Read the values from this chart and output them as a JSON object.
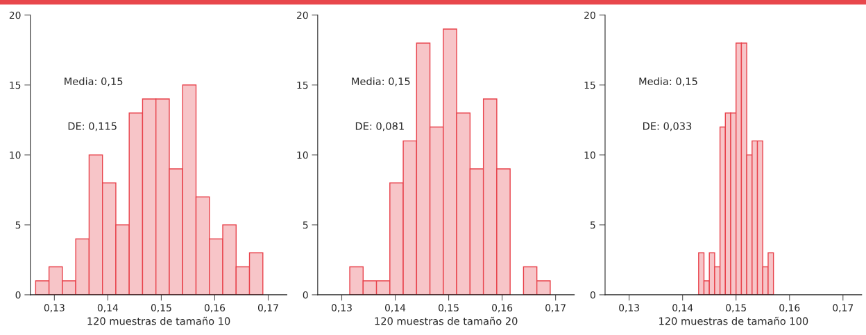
{
  "chart_data": [
    {
      "type": "histogram",
      "xlabel": "120 muestras de tamaño 10",
      "annotations": [
        "Media: 0,15",
        "DE: 0,115"
      ],
      "color": "#f7c5c8",
      "bins": [
        0.1265,
        0.129,
        0.1315,
        0.134,
        0.1365,
        0.139,
        0.1415,
        0.144,
        0.1465,
        0.149,
        0.1515,
        0.154,
        0.1565,
        0.159,
        0.1615,
        0.164,
        0.1665,
        0.169
      ],
      "values": [
        1,
        2,
        1,
        4,
        10,
        8,
        5,
        13,
        14,
        14,
        9,
        15,
        7,
        4,
        5,
        2,
        3
      ],
      "xlim": [
        0.1255,
        0.1735
      ],
      "xticks": [
        {
          "value": 0.13,
          "label": "0,13"
        },
        {
          "value": 0.14,
          "label": "0,14"
        },
        {
          "value": 0.15,
          "label": "0,15"
        },
        {
          "value": 0.16,
          "label": "0,16"
        },
        {
          "value": 0.17,
          "label": "0,17"
        }
      ],
      "ylim": [
        0,
        20
      ],
      "yticks": [
        0,
        5,
        10,
        15,
        20
      ],
      "grid": false
    },
    {
      "type": "histogram",
      "xlabel": "120 muestras de tamaño 20",
      "annotations": [
        "Media: 0,15",
        "DE: 0,081"
      ],
      "color": "#f7c5c8",
      "bins": [
        0.1315,
        0.134,
        0.1365,
        0.139,
        0.1415,
        0.144,
        0.1465,
        0.149,
        0.1515,
        0.154,
        0.1565,
        0.159,
        0.1615,
        0.164,
        0.1665,
        0.169
      ],
      "values": [
        2,
        1,
        1,
        8,
        11,
        18,
        12,
        19,
        13,
        9,
        14,
        9,
        0,
        2,
        1
      ],
      "xlim": [
        0.1255,
        0.1735
      ],
      "xticks": [
        {
          "value": 0.13,
          "label": "0,13"
        },
        {
          "value": 0.14,
          "label": "0,14"
        },
        {
          "value": 0.15,
          "label": "0,15"
        },
        {
          "value": 0.16,
          "label": "0,16"
        },
        {
          "value": 0.17,
          "label": "0,17"
        }
      ],
      "ylim": [
        0,
        20
      ],
      "yticks": [
        0,
        5,
        10,
        15,
        20
      ],
      "grid": false
    },
    {
      "type": "histogram",
      "xlabel": "120 muestras de tamaño 100",
      "annotations": [
        "Media: 0,15",
        "DE: 0,033"
      ],
      "color": "#f7c5c8",
      "bins": [
        0.143,
        0.144,
        0.145,
        0.146,
        0.147,
        0.148,
        0.149,
        0.15,
        0.151,
        0.152,
        0.153,
        0.154,
        0.155,
        0.156,
        0.157
      ],
      "values": [
        3,
        1,
        3,
        2,
        12,
        13,
        13,
        18,
        18,
        10,
        11,
        11,
        2,
        3
      ],
      "xlim": [
        0.1255,
        0.1735
      ],
      "xticks": [
        {
          "value": 0.13,
          "label": "0,13"
        },
        {
          "value": 0.14,
          "label": "0,14"
        },
        {
          "value": 0.15,
          "label": "0,15"
        },
        {
          "value": 0.16,
          "label": "0,16"
        },
        {
          "value": 0.17,
          "label": "0,17"
        }
      ],
      "ylim": [
        0,
        20
      ],
      "yticks": [
        0,
        5,
        10,
        15,
        20
      ],
      "grid": false
    }
  ]
}
